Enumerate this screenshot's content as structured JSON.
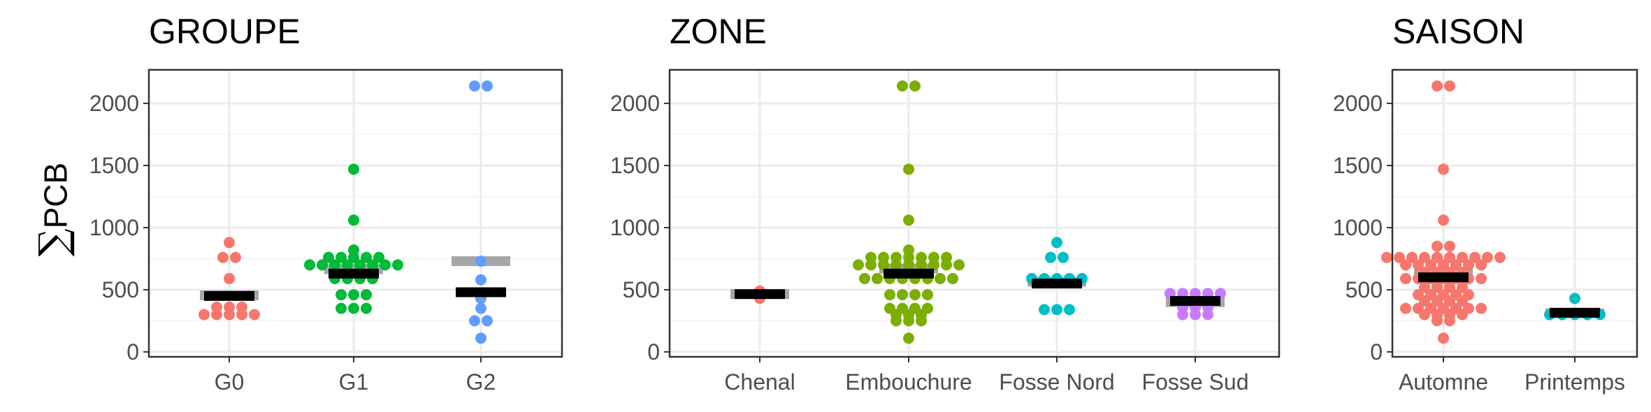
{
  "figure": {
    "ylabel_symbol": "∑",
    "ylabel_text": "PCB",
    "colors": {
      "panel_border": "#333333",
      "grid": "#ebebeb",
      "mean_bar": "#000000",
      "median_bar": "#a6a6a6",
      "tick_text": "#4d4d4d"
    }
  },
  "chart_data": [
    {
      "type": "scatter",
      "title": "GROUPE",
      "categories": [
        "G0",
        "G1",
        "G2"
      ],
      "colors": [
        "#F8766D",
        "#00BA38",
        "#619CFF"
      ],
      "yticks": [
        0,
        500,
        1000,
        1500,
        2000
      ],
      "ylim": [
        -40,
        2270
      ],
      "grid": true,
      "series": [
        {
          "category": "G0",
          "points": [
            880,
            760,
            760,
            590,
            360,
            360,
            360,
            300,
            300,
            300,
            300,
            300
          ],
          "mean": 450,
          "median": 455
        },
        {
          "category": "G1",
          "points": [
            1470,
            1060,
            820,
            760,
            760,
            760,
            760,
            760,
            700,
            700,
            700,
            700,
            700,
            700,
            700,
            700,
            590,
            590,
            590,
            590,
            460,
            460,
            460,
            350,
            350,
            350
          ],
          "mean": 630,
          "median": 665
        },
        {
          "category": "G2",
          "points": [
            2140,
            2140,
            730,
            580,
            430,
            350,
            250,
            250,
            110
          ],
          "mean": 480,
          "median": 730
        }
      ]
    },
    {
      "type": "scatter",
      "title": "ZONE",
      "categories": [
        "Chenal",
        "Embouchure",
        "Fosse Nord",
        "Fosse Sud"
      ],
      "colors": [
        "#F8766D",
        "#7CAE00",
        "#00BFC4",
        "#C77CFF"
      ],
      "yticks": [
        0,
        500,
        1000,
        1500,
        2000
      ],
      "ylim": [
        -40,
        2270
      ],
      "grid": true,
      "series": [
        {
          "category": "Chenal",
          "points": [
            490,
            430
          ],
          "mean": 465,
          "median": 465
        },
        {
          "category": "Embouchure",
          "points": [
            2140,
            2140,
            1470,
            1060,
            820,
            760,
            760,
            760,
            760,
            760,
            760,
            760,
            700,
            700,
            700,
            700,
            700,
            700,
            700,
            700,
            700,
            590,
            590,
            590,
            590,
            590,
            590,
            590,
            590,
            460,
            460,
            460,
            460,
            350,
            350,
            350,
            350,
            300,
            300,
            300,
            250,
            250,
            250,
            110
          ],
          "mean": 630,
          "median": 670
        },
        {
          "category": "Fosse Nord",
          "points": [
            880,
            760,
            760,
            590,
            590,
            590,
            590,
            590,
            340,
            340,
            340
          ],
          "mean": 550,
          "median": 565
        },
        {
          "category": "Fosse Sud",
          "points": [
            470,
            470,
            470,
            470,
            470,
            420,
            420,
            420,
            360,
            360,
            360,
            300,
            300,
            300
          ],
          "mean": 410,
          "median": 400
        }
      ]
    },
    {
      "type": "scatter",
      "title": "SAISON",
      "categories": [
        "Automne",
        "Printemps"
      ],
      "colors": [
        "#F8766D",
        "#00BFC4"
      ],
      "yticks": [
        0,
        500,
        1000,
        1500,
        2000
      ],
      "ylim": [
        -40,
        2270
      ],
      "grid": true,
      "series": [
        {
          "category": "Automne",
          "points": [
            2140,
            2140,
            1470,
            1060,
            850,
            850,
            760,
            760,
            760,
            760,
            760,
            760,
            760,
            760,
            760,
            760,
            700,
            700,
            700,
            700,
            700,
            700,
            700,
            640,
            640,
            640,
            640,
            590,
            590,
            590,
            590,
            590,
            590,
            590,
            520,
            520,
            520,
            520,
            460,
            460,
            460,
            460,
            460,
            410,
            410,
            410,
            410,
            350,
            350,
            350,
            350,
            350,
            350,
            350,
            300,
            300,
            300,
            300,
            250,
            250,
            110
          ],
          "mean": 600,
          "median": 640
        },
        {
          "category": "Printemps",
          "points": [
            430,
            300,
            300,
            300,
            300,
            300
          ],
          "mean": 315,
          "median": 310
        }
      ]
    }
  ]
}
